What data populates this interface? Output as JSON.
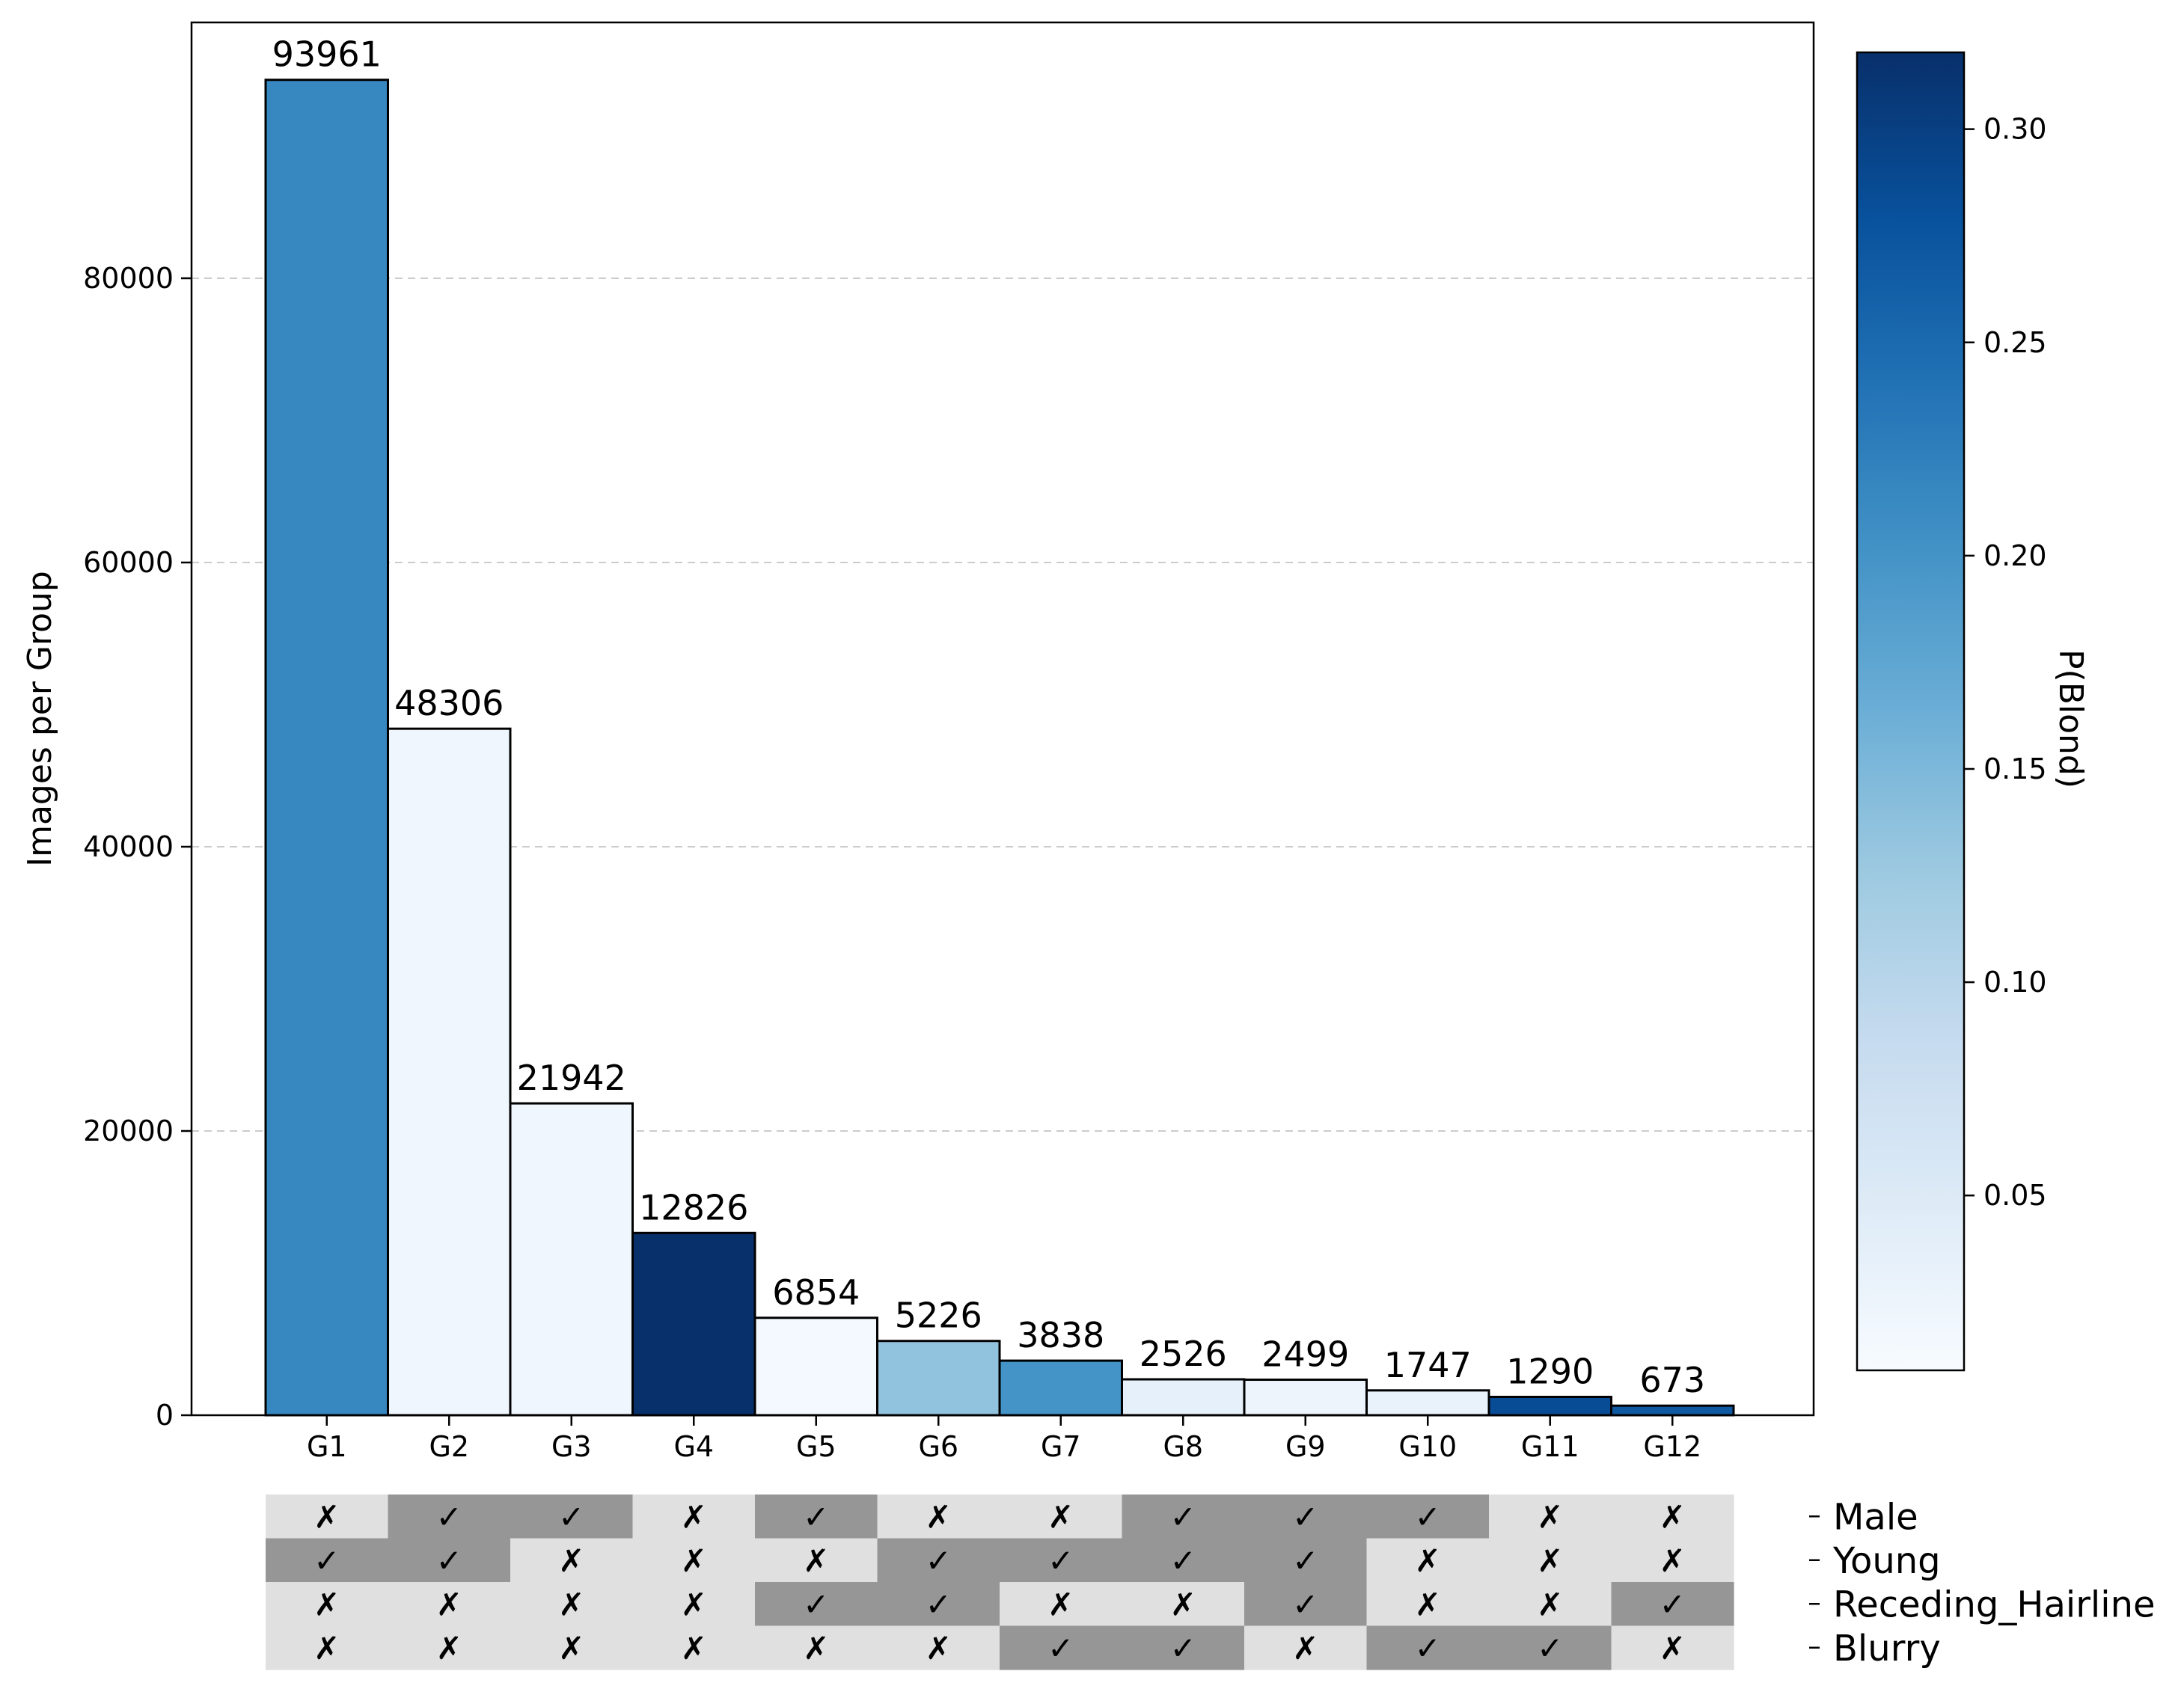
{
  "chart_data": {
    "type": "bar",
    "categories": [
      "G1",
      "G2",
      "G3",
      "G4",
      "G5",
      "G6",
      "G7",
      "G8",
      "G9",
      "G10",
      "G11",
      "G12"
    ],
    "values": [
      93961,
      48306,
      21942,
      12826,
      6854,
      5226,
      3838,
      2526,
      2499,
      1747,
      1290,
      673
    ],
    "color_values": [
      0.215,
      0.02,
      0.02,
      0.32,
      0.015,
      0.135,
      0.2,
      0.035,
      0.025,
      0.03,
      0.285,
      0.27
    ],
    "ylabel": "Images per Group",
    "xlabel": "",
    "ylim": [
      0,
      98000
    ],
    "yticks": [
      0,
      20000,
      40000,
      60000,
      80000
    ],
    "grid": "y-dashed",
    "colorbar": {
      "label": "P(Blond)",
      "range": [
        0.009,
        0.318
      ],
      "ticks": [
        0.05,
        0.1,
        0.15,
        0.2,
        0.25,
        0.3
      ],
      "tick_labels": [
        "0.05",
        "0.10",
        "0.15",
        "0.20",
        "0.25",
        "0.30"
      ],
      "colormap": "Blues"
    },
    "attribute_matrix": {
      "attributes": [
        "Male",
        "Young",
        "Receding_Hairline",
        "Blurry"
      ],
      "rows": [
        [
          false,
          true,
          true,
          false,
          true,
          false,
          false,
          true,
          true,
          true,
          false,
          false
        ],
        [
          true,
          true,
          false,
          false,
          false,
          true,
          true,
          true,
          true,
          false,
          false,
          false
        ],
        [
          false,
          false,
          false,
          false,
          true,
          true,
          false,
          false,
          true,
          false,
          false,
          true
        ],
        [
          false,
          false,
          false,
          false,
          false,
          false,
          true,
          true,
          false,
          true,
          true,
          false
        ]
      ],
      "true_symbol": "✓",
      "false_symbol": "✗",
      "true_color": "#969696",
      "false_color": "#e0e0e0"
    }
  }
}
